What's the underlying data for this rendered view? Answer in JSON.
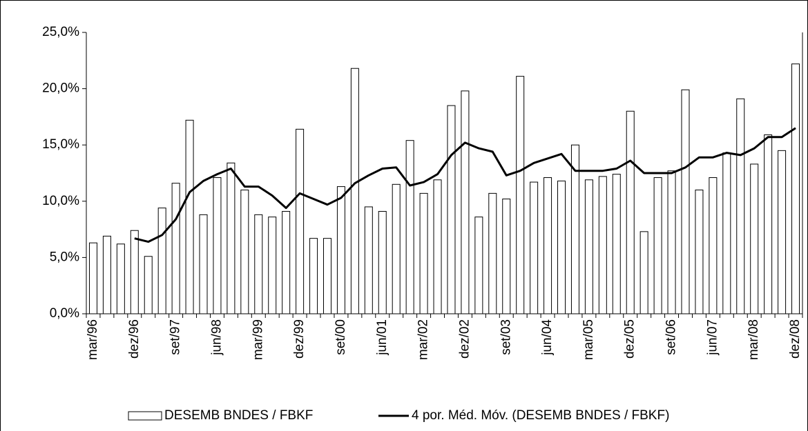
{
  "chart_data": {
    "type": "bar_line",
    "categories": [
      "mar/96",
      null,
      null,
      "dez/96",
      null,
      null,
      "set/97",
      null,
      null,
      "jun/98",
      null,
      null,
      "mar/99",
      null,
      null,
      "dez/99",
      null,
      null,
      "set/00",
      null,
      null,
      "jun/01",
      null,
      null,
      "mar/02",
      null,
      null,
      "dez/02",
      null,
      null,
      "set/03",
      null,
      null,
      "jun/04",
      null,
      null,
      "mar/05",
      null,
      null,
      "dez/05",
      null,
      null,
      "set/06",
      null,
      null,
      "jun/07",
      null,
      null,
      "mar/08",
      null,
      null,
      "dez/08"
    ],
    "series": [
      {
        "name": "DESEMB BNDES / FBKF",
        "type": "bar",
        "color": "#ffffff",
        "values": [
          6.3,
          6.9,
          6.2,
          7.4,
          5.1,
          9.4,
          11.6,
          17.2,
          8.8,
          12.1,
          13.4,
          11.0,
          8.8,
          8.6,
          9.1,
          16.4,
          6.7,
          6.7,
          11.3,
          21.8,
          9.5,
          9.1,
          11.5,
          15.4,
          10.7,
          11.9,
          18.5,
          19.8,
          8.6,
          10.7,
          10.2,
          21.1,
          11.7,
          12.1,
          11.8,
          15.0,
          11.9,
          12.2,
          12.4,
          18.0,
          7.3,
          12.1,
          12.7,
          19.9,
          11.0,
          12.1,
          14.3,
          19.1,
          13.3,
          15.9,
          14.5,
          22.2
        ]
      },
      {
        "name": "4 por. Méd. Móv. (DESEMB BNDES / FBKF)",
        "type": "line",
        "color": "#000000",
        "values": [
          null,
          null,
          null,
          6.7,
          6.4,
          7.0,
          8.4,
          10.8,
          11.8,
          12.4,
          12.9,
          11.3,
          11.3,
          10.5,
          9.4,
          10.7,
          10.2,
          9.7,
          10.3,
          11.6,
          12.3,
          12.9,
          13.0,
          11.4,
          11.7,
          12.4,
          14.1,
          15.2,
          14.7,
          14.4,
          12.3,
          12.7,
          13.4,
          13.8,
          14.2,
          12.7,
          12.7,
          12.7,
          12.9,
          13.6,
          12.5,
          12.5,
          12.5,
          13.0,
          13.9,
          13.9,
          14.3,
          14.1,
          14.7,
          15.7,
          15.7,
          16.5
        ]
      }
    ],
    "ylim": [
      0,
      25
    ],
    "yticks": [
      {
        "value": 0,
        "label": "0,0%"
      },
      {
        "value": 5,
        "label": "5,0%"
      },
      {
        "value": 10,
        "label": "10,0%"
      },
      {
        "value": 15,
        "label": "15,0%"
      },
      {
        "value": 20,
        "label": "20,0%"
      },
      {
        "value": 25,
        "label": "25,0%"
      }
    ],
    "legend": "bottom"
  }
}
